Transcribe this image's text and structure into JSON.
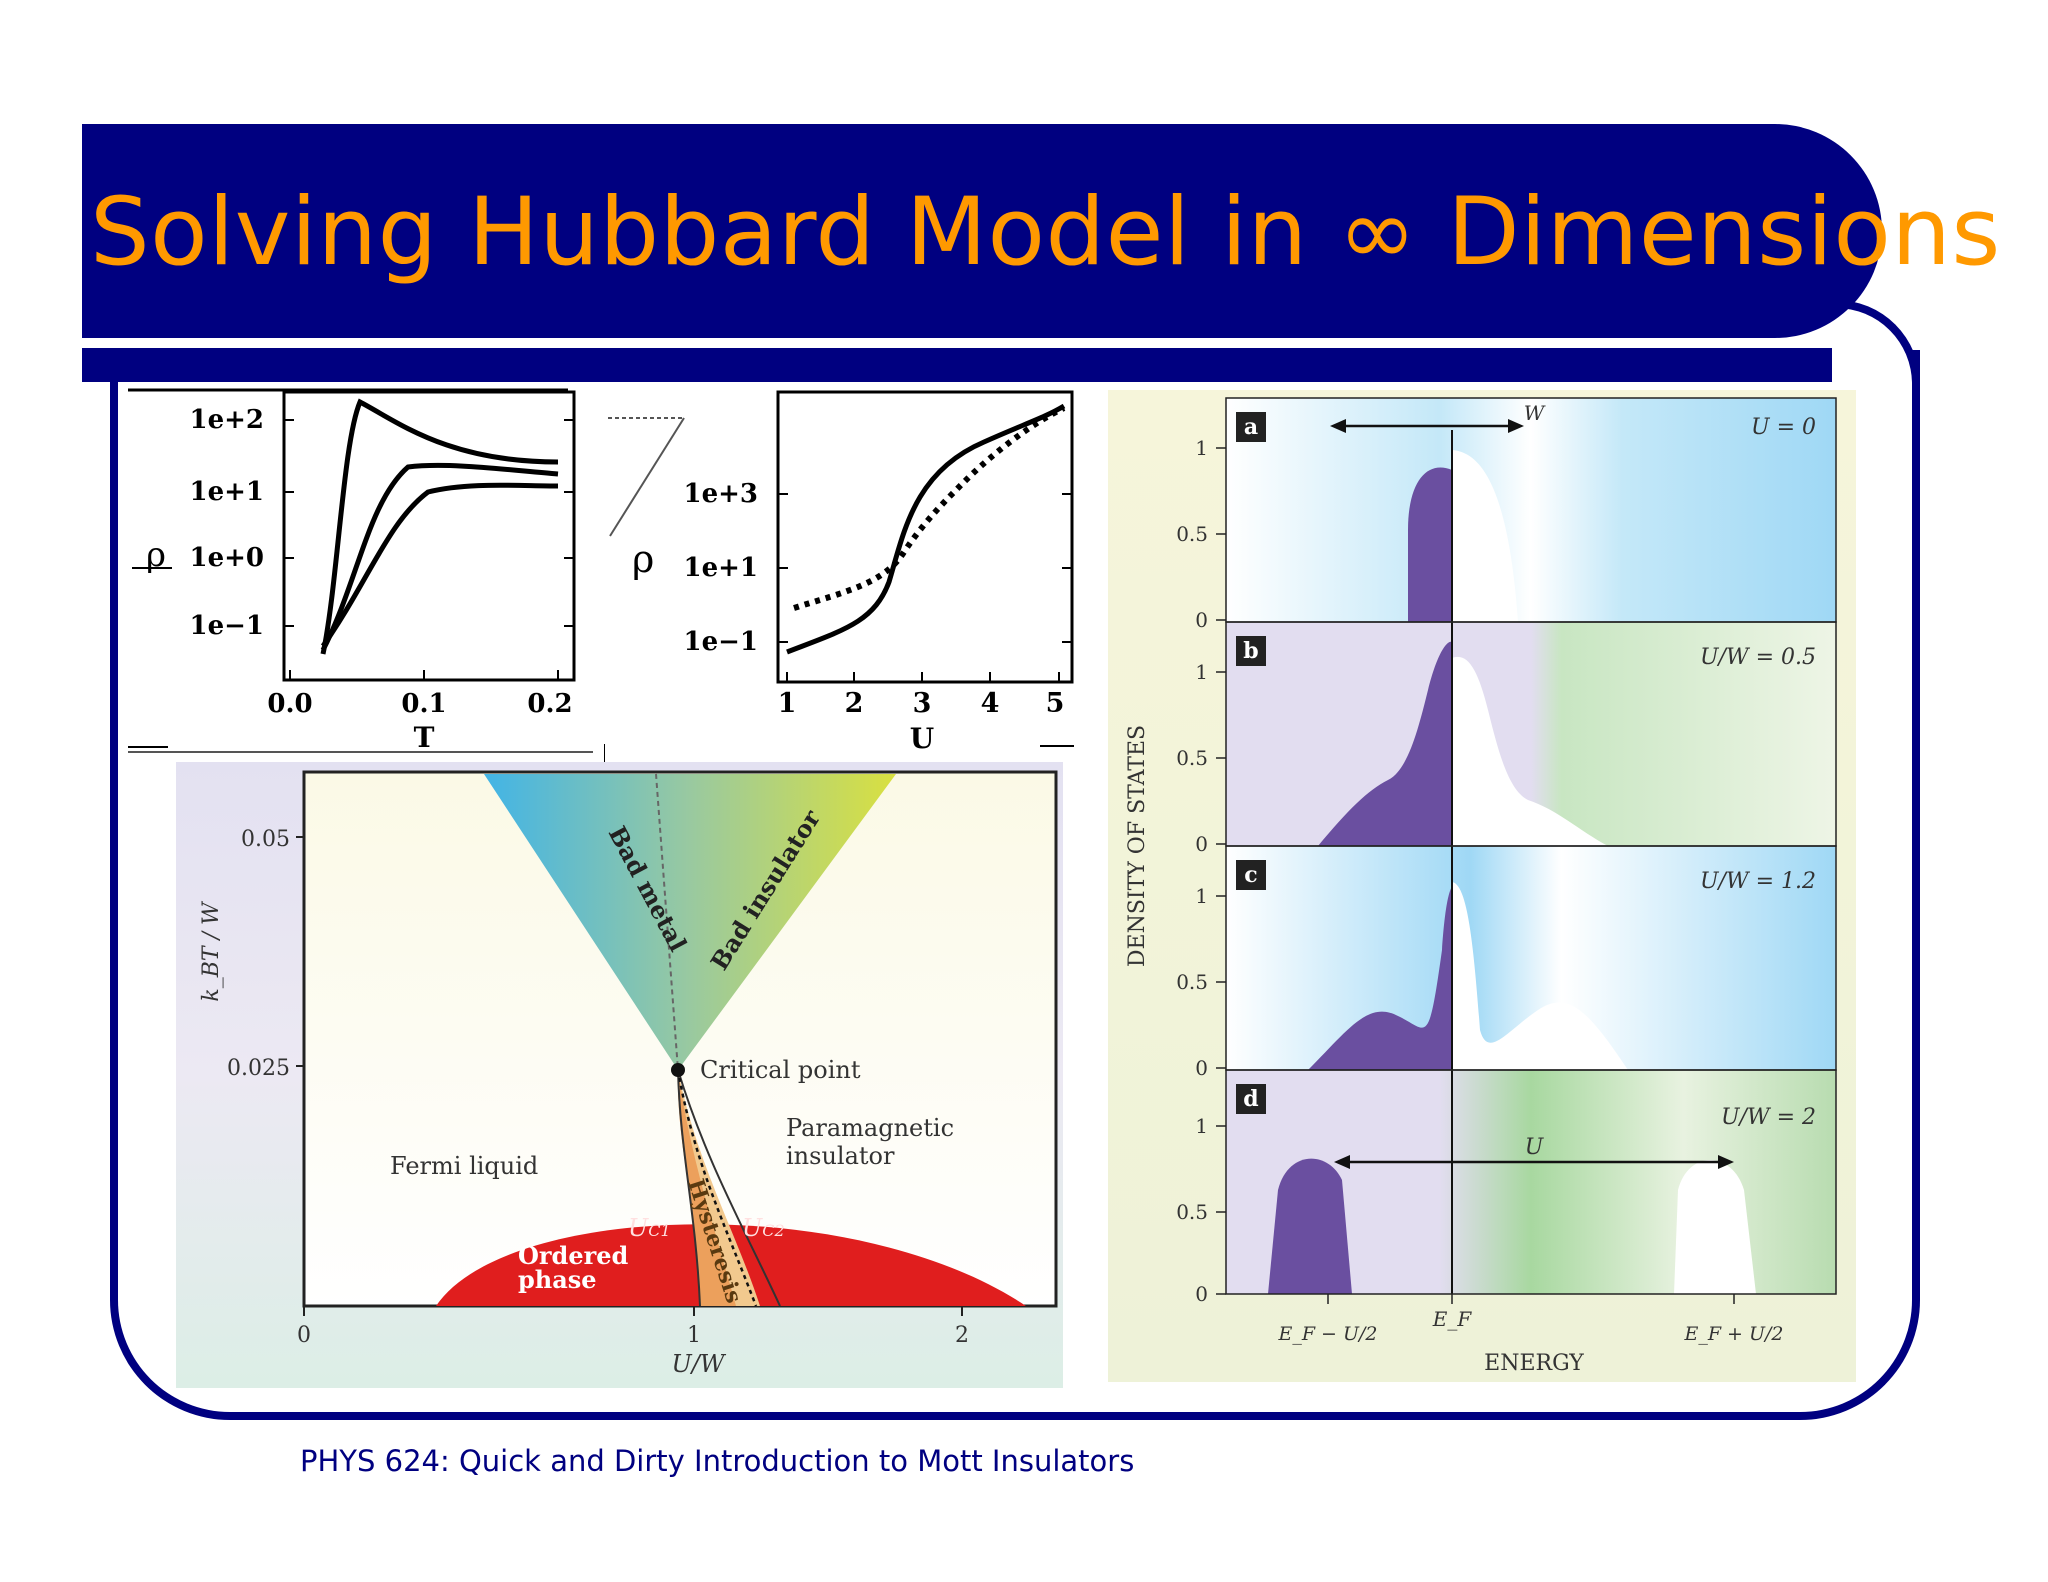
{
  "slide": {
    "title": "Solving Hubbard Model in ∞ Dimensions",
    "footer": "PHYS 624: Quick and Dirty Introduction to Mott Insulators"
  },
  "rho_T_plot": {
    "ylabel": "ρ",
    "yticks": [
      "1e+2",
      "1e+1",
      "1e+0",
      "1e−1"
    ],
    "xticks": [
      "0.0",
      "0.1",
      "0.2"
    ],
    "xlabel": "T"
  },
  "rho_U_plot": {
    "ylabel": "ρ",
    "yticks": [
      "1e+3",
      "1e+1",
      "1e−1"
    ],
    "xticks": [
      "1",
      "2",
      "3",
      "4",
      "5"
    ],
    "xlabel": "U"
  },
  "phase_diagram": {
    "ylabel": "k_BT / W",
    "yticks": [
      "0.05",
      "0.025"
    ],
    "xticks": [
      "0",
      "1",
      "2"
    ],
    "xlabel": "U/W",
    "labels": {
      "bad_metal": "Bad metal",
      "bad_insulator": "Bad insulator",
      "critical_point": "Critical point",
      "paramagnetic": "Paramagnetic",
      "insulator": "insulator",
      "fermi_liquid": "Fermi liquid",
      "ordered": "Ordered",
      "phase": "phase",
      "uc1": "U",
      "uc1_sub": "C1",
      "uc2": "U",
      "uc2_sub": "C2",
      "hysteresis": "Hysteresis"
    }
  },
  "dos_panels": {
    "ylabel": "DENSITY OF STATES",
    "xlabel": "ENERGY",
    "yticks": [
      "1",
      "0.5",
      "0"
    ],
    "x_left": "E_F − U/2",
    "x_mid": "E_F",
    "x_right": "E_F + U/2",
    "panels": [
      {
        "letter": "a",
        "param": "U = 0",
        "arrow_label": "W"
      },
      {
        "letter": "b",
        "param": "U/W = 0.5"
      },
      {
        "letter": "c",
        "param": "U/W = 1.2"
      },
      {
        "letter": "d",
        "param": "U/W = 2",
        "arrow_label": "U"
      }
    ]
  }
}
